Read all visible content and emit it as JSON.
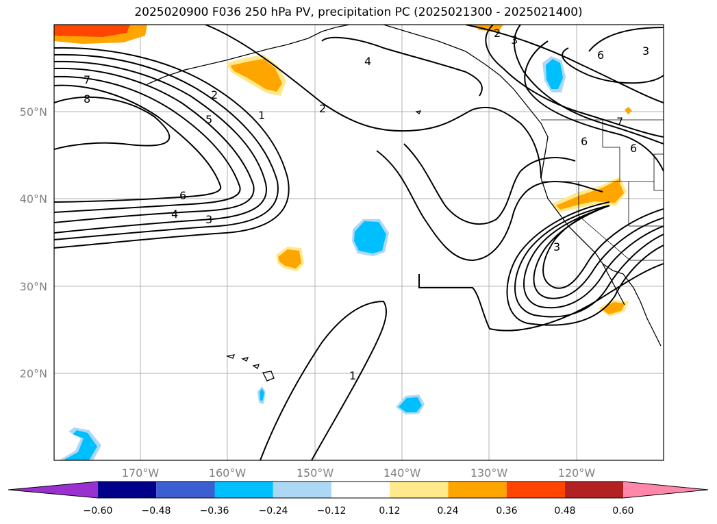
{
  "title": "2025020900 F036 250 hPa PV, precipitation PC (2025021300 - 2025021400)",
  "lat_labels": [
    "50°N",
    "40°N",
    "30°N",
    "20°N"
  ],
  "lon_labels": [
    "170°W",
    "160°W",
    "150°W",
    "140°W",
    "130°W",
    "120°W"
  ],
  "colorbar": {
    "ticks": [
      "−0.60",
      "−0.48",
      "−0.36",
      "−0.24",
      "−0.12",
      "0.12",
      "0.24",
      "0.36",
      "0.48",
      "0.60"
    ],
    "colors": [
      "#9b30d0",
      "#00008b",
      "#3b5fd0",
      "#00bfff",
      "#add8f5",
      "#ffffff",
      "#ffe98a",
      "#ffa500",
      "#ff4500",
      "#b22222",
      "#ff88aa"
    ]
  },
  "contour_labels": [
    "7",
    "8",
    "2",
    "5",
    "1",
    "6",
    "4",
    "3",
    "4",
    "2",
    "1",
    "3",
    "2",
    "3",
    "6",
    "6",
    "7",
    "6",
    "3"
  ]
}
